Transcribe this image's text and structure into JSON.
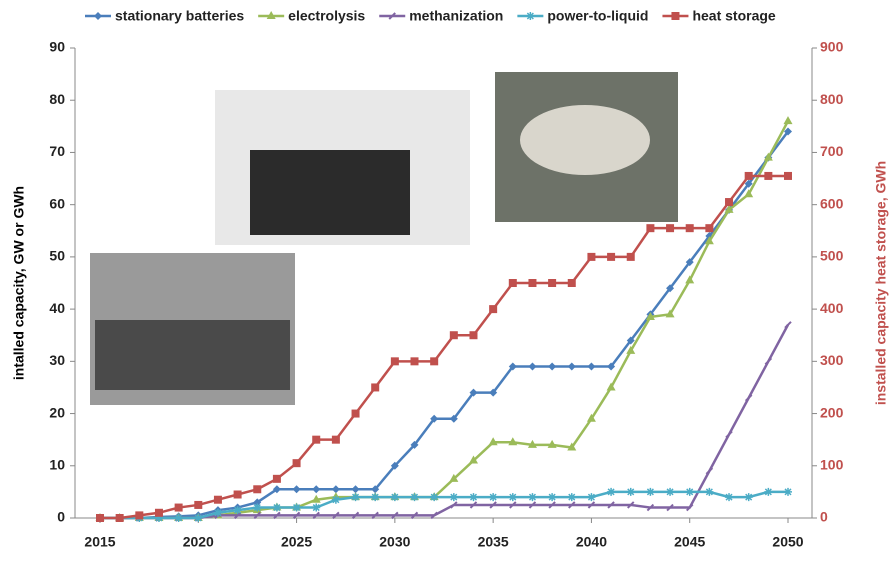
{
  "chart_data": {
    "type": "line",
    "x": [
      2015,
      2016,
      2017,
      2018,
      2019,
      2020,
      2021,
      2022,
      2023,
      2024,
      2025,
      2026,
      2027,
      2028,
      2029,
      2030,
      2031,
      2032,
      2033,
      2034,
      2035,
      2036,
      2037,
      2038,
      2039,
      2040,
      2041,
      2042,
      2043,
      2044,
      2045,
      2046,
      2047,
      2048,
      2049,
      2050
    ],
    "xlim": [
      2015,
      2050
    ],
    "xticks": [
      2015,
      2020,
      2025,
      2030,
      2035,
      2040,
      2045,
      2050
    ],
    "ylim": [
      0,
      90
    ],
    "yticks": [
      0,
      10,
      20,
      30,
      40,
      50,
      60,
      70,
      80,
      90
    ],
    "y2lim": [
      0,
      900
    ],
    "y2ticks": [
      0,
      100,
      200,
      300,
      400,
      500,
      600,
      700,
      800,
      900
    ],
    "ylabel": "intalled capacity, GW  or  GWh",
    "y2label": "installed capacity heat storage, GWh",
    "grid": false,
    "legend": "top",
    "series": [
      {
        "name": "stationary batteries",
        "color": "#4a7ebb",
        "marker": "diamond",
        "values": [
          0,
          0,
          0,
          0.2,
          0.3,
          0.5,
          1.5,
          2,
          3,
          5.5,
          5.5,
          5.5,
          5.5,
          5.5,
          5.5,
          10,
          14,
          19,
          19,
          24,
          24,
          29,
          29,
          29,
          29,
          29,
          29,
          34,
          39,
          44,
          49,
          54,
          59,
          64,
          69,
          74
        ]
      },
      {
        "name": "electrolysis",
        "color": "#9bbb59",
        "marker": "triangle",
        "values": [
          0,
          0,
          0,
          0,
          0,
          0,
          0.5,
          1,
          1.5,
          2,
          2,
          3.5,
          4,
          4,
          4,
          4,
          4,
          4,
          7.5,
          11,
          14.5,
          14.5,
          14,
          14,
          13.5,
          19,
          25,
          32,
          38.5,
          39,
          45.5,
          53,
          59,
          62,
          69,
          76
        ]
      },
      {
        "name": "methanization",
        "color": "#8064a2",
        "marker": "dash",
        "values": [
          0,
          0,
          0,
          0,
          0,
          0,
          0.5,
          0.5,
          0.5,
          0.5,
          0.5,
          0.5,
          0.5,
          0.5,
          0.5,
          0.5,
          0.5,
          0.5,
          2.5,
          2.5,
          2.5,
          2.5,
          2.5,
          2.5,
          2.5,
          2.5,
          2.5,
          2.5,
          2,
          2,
          2,
          9,
          16,
          23,
          30,
          37
        ]
      },
      {
        "name": "power-to-liquid",
        "color": "#4bacc6",
        "marker": "star",
        "values": [
          0,
          0,
          0,
          0,
          0,
          0,
          1,
          1.5,
          2,
          2,
          2,
          2,
          3.5,
          4,
          4,
          4,
          4,
          4,
          4,
          4,
          4,
          4,
          4,
          4,
          4,
          4,
          5,
          5,
          5,
          5,
          5,
          5,
          4,
          4,
          5,
          5
        ]
      },
      {
        "name": "heat storage",
        "color": "#c0504d",
        "marker": "square",
        "axis": "y2",
        "values": [
          0,
          0,
          5,
          10,
          20,
          25,
          35,
          45,
          55,
          75,
          105,
          150,
          150,
          200,
          250,
          300,
          300,
          300,
          350,
          350,
          400,
          450,
          450,
          450,
          450,
          500,
          500,
          500,
          555,
          555,
          555,
          555,
          605,
          655,
          655,
          655
        ]
      }
    ]
  }
}
